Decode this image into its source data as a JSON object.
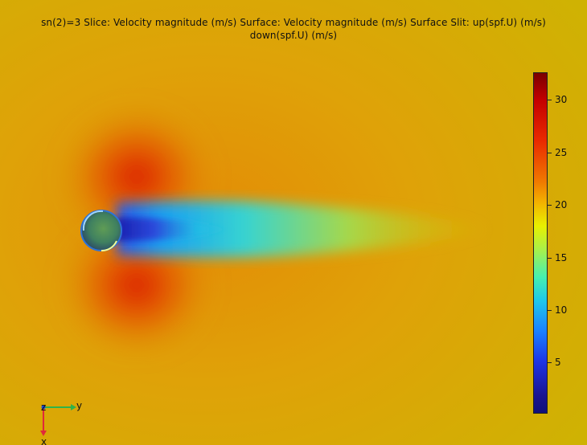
{
  "title": {
    "line1": "sn(2)=3 Slice: Velocity magnitude (m/s)  Surface: Velocity magnitude (m/s)  Surface Slit: up(spf.U) (m/s)",
    "line2": "down(spf.U) (m/s)"
  },
  "colorbar": {
    "ticks": [
      "30",
      "25",
      "20",
      "15",
      "10",
      "5"
    ],
    "min": 0.5,
    "max": 32.5,
    "colors": {
      "top": "#7a0000",
      "bottom": "#10107a"
    }
  },
  "axes": {
    "z_label": "z",
    "y_label": "y",
    "x_label": "x",
    "colors": {
      "y_axis": "#2fb34a",
      "x_axis": "#e0283a",
      "z_axis": "#1a48d8"
    }
  },
  "scene": {
    "background": "#d8a708",
    "object": "cylinder",
    "wake": "low-velocity-region"
  }
}
